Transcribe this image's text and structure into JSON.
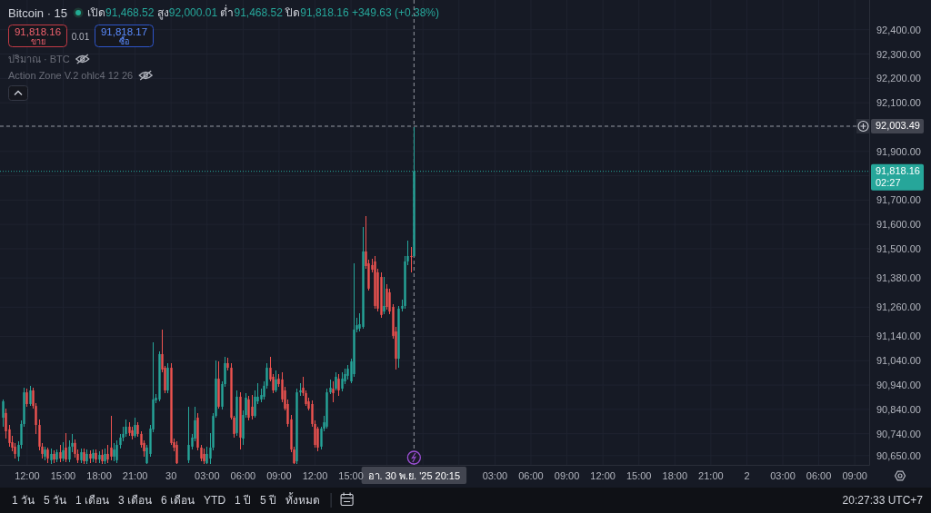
{
  "chart_data": {
    "type": "candlestick",
    "title": "Bitcoin · 15",
    "subtitle": "เปิด91,468.52 สูง92,000.01 ต่ำ91,468.52 ปิด91,818.16 +349.63 (+0.38%)",
    "x": [
      "2025-11-29T10:00",
      "2025-11-29T10:15",
      "2025-11-29T10:30",
      "2025-11-29T10:45",
      "2025-11-29T11:00",
      "2025-11-29T11:15",
      "2025-11-29T11:30",
      "2025-11-29T11:45",
      "2025-11-29T12:00",
      "2025-11-29T12:15",
      "2025-11-29T12:30",
      "2025-11-29T12:45",
      "2025-11-29T13:00",
      "2025-11-29T13:15",
      "2025-11-29T13:30",
      "2025-11-29T13:45",
      "2025-11-29T14:00",
      "2025-11-29T14:15",
      "2025-11-29T14:30",
      "2025-11-29T14:45",
      "2025-11-29T15:00",
      "2025-11-29T15:15",
      "2025-11-29T15:30",
      "2025-11-29T15:45",
      "2025-11-29T16:00",
      "2025-11-29T16:15",
      "2025-11-29T16:30",
      "2025-11-29T16:45",
      "2025-11-29T17:00",
      "2025-11-29T17:15",
      "2025-11-29T17:30",
      "2025-11-29T17:45",
      "2025-11-29T18:00",
      "2025-11-29T18:15",
      "2025-11-29T18:30",
      "2025-11-29T18:45",
      "2025-11-29T19:00",
      "2025-11-29T19:15",
      "2025-11-29T19:30",
      "2025-11-29T19:45",
      "2025-11-29T20:00",
      "2025-11-29T20:15",
      "2025-11-29T20:30",
      "2025-11-29T20:45",
      "2025-11-29T21:00",
      "2025-11-29T21:15",
      "2025-11-29T21:30",
      "2025-11-29T21:45",
      "2025-11-29T22:00",
      "2025-11-29T22:15",
      "2025-11-29T22:30",
      "2025-11-29T22:45",
      "2025-11-29T23:00",
      "2025-11-29T23:15",
      "2025-11-29T23:30",
      "2025-11-29T23:45",
      "2025-11-30T00:00",
      "2025-11-30T00:15",
      "2025-11-30T00:30",
      "2025-11-30T01:30",
      "2025-11-30T01:45",
      "2025-11-30T02:00",
      "2025-11-30T02:15",
      "2025-11-30T02:30",
      "2025-11-30T02:45",
      "2025-11-30T03:00",
      "2025-11-30T03:15",
      "2025-11-30T03:30",
      "2025-11-30T03:45",
      "2025-11-30T04:00",
      "2025-11-30T04:15",
      "2025-11-30T04:30",
      "2025-11-30T04:45",
      "2025-11-30T05:00",
      "2025-11-30T05:15",
      "2025-11-30T05:30",
      "2025-11-30T05:45",
      "2025-11-30T06:00",
      "2025-11-30T06:15",
      "2025-11-30T06:30",
      "2025-11-30T06:45",
      "2025-11-30T07:00",
      "2025-11-30T07:15",
      "2025-11-30T07:30",
      "2025-11-30T07:45",
      "2025-11-30T08:00",
      "2025-11-30T08:15",
      "2025-11-30T08:30",
      "2025-11-30T08:45",
      "2025-11-30T09:00",
      "2025-11-30T09:15",
      "2025-11-30T09:30",
      "2025-11-30T09:45",
      "2025-11-30T10:00",
      "2025-11-30T10:15",
      "2025-11-30T10:30",
      "2025-11-30T10:45",
      "2025-11-30T11:00",
      "2025-11-30T11:15",
      "2025-11-30T11:30",
      "2025-11-30T11:45",
      "2025-11-30T12:00",
      "2025-11-30T12:15",
      "2025-11-30T12:30",
      "2025-11-30T12:45",
      "2025-11-30T13:00",
      "2025-11-30T13:15",
      "2025-11-30T13:30",
      "2025-11-30T13:45",
      "2025-11-30T14:00",
      "2025-11-30T14:15",
      "2025-11-30T14:30",
      "2025-11-30T14:45",
      "2025-11-30T15:00",
      "2025-11-30T15:15",
      "2025-11-30T15:30",
      "2025-11-30T15:45",
      "2025-11-30T16:00",
      "2025-11-30T16:15",
      "2025-11-30T16:30",
      "2025-11-30T16:45",
      "2025-11-30T17:00",
      "2025-11-30T17:15",
      "2025-11-30T17:30",
      "2025-11-30T17:45",
      "2025-11-30T18:00",
      "2025-11-30T18:15",
      "2025-11-30T18:30",
      "2025-11-30T18:45",
      "2025-11-30T19:00",
      "2025-11-30T19:15",
      "2025-11-30T19:30",
      "2025-11-30T19:45",
      "2025-11-30T20:00",
      "2025-11-30T20:15"
    ],
    "ohlc": [
      [
        90806,
        90881,
        90769,
        90873
      ],
      [
        90825,
        90843,
        90720,
        90750
      ],
      [
        90758,
        90776,
        90687,
        90702
      ],
      [
        90705,
        90731,
        90668,
        90683
      ],
      [
        90687,
        90702,
        90638,
        90657
      ],
      [
        90646,
        90709,
        90627,
        90694
      ],
      [
        90694,
        90795,
        90679,
        90780
      ],
      [
        90780,
        90929,
        90769,
        90910
      ],
      [
        90910,
        90925,
        90851,
        90862
      ],
      [
        90862,
        90937,
        90854,
        90918
      ],
      [
        90918,
        90929,
        90843,
        90854
      ],
      [
        90854,
        90866,
        90739,
        90776
      ],
      [
        90776,
        90799,
        90672,
        90687
      ],
      [
        90687,
        90702,
        90638,
        90657
      ],
      [
        90646,
        90687,
        90631,
        90675
      ],
      [
        90675,
        90683,
        90619,
        90638
      ],
      [
        90631,
        90680,
        90616,
        90657
      ],
      [
        90657,
        90672,
        90619,
        90634
      ],
      [
        90634,
        90675,
        90623,
        90664
      ],
      [
        90664,
        90694,
        90623,
        90638
      ],
      [
        90638,
        90705,
        90627,
        90672
      ],
      [
        90683,
        90743,
        90623,
        90634
      ],
      [
        90634,
        90713,
        90623,
        90687
      ],
      [
        90687,
        90739,
        90664,
        90702
      ],
      [
        90702,
        90717,
        90642,
        90657
      ],
      [
        90657,
        90675,
        90619,
        90631
      ],
      [
        90631,
        90679,
        90619,
        90664
      ],
      [
        90664,
        90679,
        90616,
        90627
      ],
      [
        90627,
        90675,
        90616,
        90657
      ],
      [
        90657,
        90672,
        90619,
        90638
      ],
      [
        90638,
        90675,
        90623,
        90661
      ],
      [
        90661,
        90675,
        90619,
        90634
      ],
      [
        90634,
        90668,
        90619,
        90653
      ],
      [
        90653,
        90675,
        90616,
        90627
      ],
      [
        90627,
        90679,
        90616,
        90657
      ],
      [
        90657,
        90694,
        90619,
        90634
      ],
      [
        90683,
        90813,
        90631,
        90646
      ],
      [
        90646,
        90702,
        90627,
        90675
      ],
      [
        90631,
        90713,
        90619,
        90694
      ],
      [
        90694,
        90739,
        90679,
        90724
      ],
      [
        90724,
        90769,
        90709,
        90739
      ],
      [
        90739,
        90799,
        90728,
        90769
      ],
      [
        90769,
        90787,
        90731,
        90743
      ],
      [
        90754,
        90769,
        90717,
        90731
      ],
      [
        90731,
        90806,
        90724,
        90776
      ],
      [
        90776,
        90787,
        90728,
        90739
      ],
      [
        90739,
        90750,
        90683,
        90694
      ],
      [
        90702,
        90713,
        90646,
        90668
      ],
      [
        90619,
        90694,
        90616,
        90683
      ],
      [
        90657,
        90776,
        90646,
        90761
      ],
      [
        90758,
        91116,
        90746,
        90881
      ],
      [
        90877,
        90903,
        90866,
        90888
      ],
      [
        90881,
        91078,
        90873,
        91067
      ],
      [
        91067,
        91168,
        90993,
        91004
      ],
      [
        91011,
        91019,
        90907,
        90918
      ],
      [
        90918,
        91030,
        90907,
        91011
      ],
      [
        91011,
        91030,
        90694,
        90702
      ],
      [
        90705,
        90720,
        90668,
        90683
      ],
      [
        90694,
        90709,
        90616,
        90619
      ],
      [
        90631,
        90851,
        90619,
        90694
      ],
      [
        90687,
        90739,
        90675,
        90724
      ],
      [
        90720,
        90851,
        90709,
        90795
      ],
      [
        90806,
        90825,
        90672,
        90683
      ],
      [
        90683,
        90694,
        90627,
        90638
      ],
      [
        90657,
        90680,
        90616,
        90627
      ],
      [
        90619,
        90687,
        90616,
        90657
      ],
      [
        90638,
        90743,
        90616,
        90683
      ],
      [
        90683,
        90825,
        90672,
        90813
      ],
      [
        90813,
        91041,
        90806,
        90966
      ],
      [
        90966,
        91037,
        90843,
        90851
      ],
      [
        90851,
        90955,
        90840,
        90944
      ],
      [
        90944,
        91056,
        90933,
        91030
      ],
      [
        91030,
        91052,
        91000,
        91011
      ],
      [
        91011,
        91030,
        90799,
        90806
      ],
      [
        90806,
        90813,
        90724,
        90739
      ],
      [
        90743,
        90918,
        90731,
        90892
      ],
      [
        90892,
        90910,
        90675,
        90724
      ],
      [
        90720,
        90836,
        90694,
        90817
      ],
      [
        90817,
        90907,
        90806,
        90888
      ],
      [
        90881,
        90896,
        90795,
        90806
      ],
      [
        90851,
        90899,
        90799,
        90813
      ],
      [
        90813,
        90918,
        90806,
        90892
      ],
      [
        90873,
        90948,
        90862,
        90892
      ],
      [
        90881,
        90925,
        90869,
        90899
      ],
      [
        90892,
        90955,
        90881,
        90937
      ],
      [
        90937,
        91030,
        90925,
        91011
      ],
      [
        91011,
        91056,
        90955,
        90963
      ],
      [
        90974,
        90985,
        90907,
        90918
      ],
      [
        90918,
        91000,
        90910,
        90963
      ],
      [
        90966,
        90985,
        90933,
        90944
      ],
      [
        90963,
        90993,
        90869,
        90881
      ],
      [
        90918,
        90933,
        90836,
        90843
      ],
      [
        90862,
        90881,
        90769,
        90780
      ],
      [
        90799,
        90817,
        90664,
        90675
      ],
      [
        90675,
        90687,
        90616,
        90619
      ],
      [
        90627,
        90925,
        90616,
        90910
      ],
      [
        90910,
        90948,
        90896,
        90918
      ],
      [
        90929,
        90974,
        90896,
        90907
      ],
      [
        90907,
        90918,
        90854,
        90862
      ],
      [
        90873,
        90888,
        90836,
        90843
      ],
      [
        90862,
        90877,
        90769,
        90780
      ],
      [
        90780,
        90795,
        90683,
        90694
      ],
      [
        90761,
        90769,
        90668,
        90683
      ],
      [
        90687,
        90769,
        90675,
        90761
      ],
      [
        90761,
        90813,
        90750,
        90787
      ],
      [
        90769,
        90925,
        90761,
        90910
      ],
      [
        90910,
        90963,
        90903,
        90929
      ],
      [
        90925,
        90955,
        90869,
        90907
      ],
      [
        90925,
        90993,
        90918,
        90974
      ],
      [
        90966,
        90985,
        90896,
        90918
      ],
      [
        90925,
        90993,
        90914,
        90966
      ],
      [
        90955,
        91007,
        90944,
        90985
      ],
      [
        90978,
        91022,
        90963,
        91007
      ],
      [
        90955,
        91048,
        90948,
        91037
      ],
      [
        90985,
        91440,
        90974,
        91168
      ],
      [
        91168,
        91216,
        91157,
        91186
      ],
      [
        91172,
        91235,
        91160,
        91190
      ],
      [
        91179,
        91589,
        91172,
        91489
      ],
      [
        91489,
        91634,
        91418,
        91429
      ],
      [
        91440,
        91455,
        91328,
        91336
      ],
      [
        91433,
        91459,
        91403,
        91414
      ],
      [
        91448,
        91470,
        91254,
        91265
      ],
      [
        91403,
        91418,
        91242,
        91254
      ],
      [
        91384,
        91403,
        91216,
        91228
      ],
      [
        91242,
        91384,
        91231,
        91265
      ],
      [
        91336,
        91354,
        91250,
        91261
      ],
      [
        91321,
        91336,
        91231,
        91242
      ],
      [
        91261,
        91272,
        91131,
        91142
      ],
      [
        91160,
        91179,
        91004,
        91048
      ],
      [
        91048,
        91265,
        91011,
        91254
      ],
      [
        91254,
        91291,
        91242,
        91265
      ],
      [
        91265,
        91470,
        91254,
        91448
      ],
      [
        91448,
        91533,
        91433,
        91470
      ],
      [
        91470,
        91507,
        91403,
        91466
      ],
      [
        91468.52,
        92000.01,
        91468.52,
        91818.16
      ]
    ],
    "colors": [
      "#26a69a",
      "#ef5350",
      "#ef5350",
      "#ef5350",
      "#ef5350",
      "#26a69a",
      "#26a69a",
      "#26a69a",
      "#ef5350",
      "#26a69a",
      "#ef5350",
      "#ef5350",
      "#ef5350",
      "#ef5350",
      "#26a69a",
      "#ef5350",
      "#26a69a",
      "#ef5350",
      "#26a69a",
      "#ef5350",
      "#26a69a",
      "#ef5350",
      "#26a69a",
      "#26a69a",
      "#ef5350",
      "#ef5350",
      "#26a69a",
      "#ef5350",
      "#26a69a",
      "#ef5350",
      "#26a69a",
      "#ef5350",
      "#26a69a",
      "#ef5350",
      "#26a69a",
      "#ef5350",
      "#ef5350",
      "#26a69a",
      "#26a69a",
      "#26a69a",
      "#26a69a",
      "#26a69a",
      "#ef5350",
      "#ef5350",
      "#26a69a",
      "#ef5350",
      "#ef5350",
      "#ef5350",
      "#26a69a",
      "#26a69a",
      "#26a69a",
      "#26a69a",
      "#26a69a",
      "#ef5350",
      "#ef5350",
      "#26a69a",
      "#ef5350",
      "#ef5350",
      "#ef5350",
      "#26a69a",
      "#26a69a",
      "#26a69a",
      "#ef5350",
      "#ef5350",
      "#ef5350",
      "#26a69a",
      "#26a69a",
      "#26a69a",
      "#26a69a",
      "#ef5350",
      "#26a69a",
      "#26a69a",
      "#ef5350",
      "#ef5350",
      "#ef5350",
      "#26a69a",
      "#ef5350",
      "#26a69a",
      "#26a69a",
      "#ef5350",
      "#ef5350",
      "#26a69a",
      "#26a69a",
      "#26a69a",
      "#26a69a",
      "#26a69a",
      "#ef5350",
      "#ef5350",
      "#26a69a",
      "#ef5350",
      "#ef5350",
      "#ef5350",
      "#ef5350",
      "#ef5350",
      "#ef5350",
      "#26a69a",
      "#26a69a",
      "#ef5350",
      "#ef5350",
      "#ef5350",
      "#ef5350",
      "#ef5350",
      "#ef5350",
      "#26a69a",
      "#26a69a",
      "#26a69a",
      "#26a69a",
      "#ef5350",
      "#26a69a",
      "#ef5350",
      "#26a69a",
      "#26a69a",
      "#26a69a",
      "#26a69a",
      "#26a69a",
      "#26a69a",
      "#26a69a",
      "#26a69a",
      "#ef5350",
      "#ef5350",
      "#ef5350",
      "#ef5350",
      "#ef5350",
      "#ef5350",
      "#26a69a",
      "#ef5350",
      "#ef5350",
      "#ef5350",
      "#ef5350",
      "#26a69a",
      "#26a69a",
      "#26a69a",
      "#26a69a",
      "#ef5350",
      "#26a69a"
    ],
    "xlim": [
      "2025-11-29T09:44",
      "2025-12-02T10:12"
    ],
    "ylim": [
      90612,
      92522
    ],
    "xticks": [
      {
        "value": "2025-11-29T12:00",
        "label": "12:00"
      },
      {
        "value": "2025-11-29T15:00",
        "label": "15:00"
      },
      {
        "value": "2025-11-29T18:00",
        "label": "18:00"
      },
      {
        "value": "2025-11-29T21:00",
        "label": "21:00"
      },
      {
        "value": "2025-11-30T00:00",
        "label": "30"
      },
      {
        "value": "2025-11-30T03:00",
        "label": "03:00"
      },
      {
        "value": "2025-11-30T06:00",
        "label": "06:00"
      },
      {
        "value": "2025-11-30T09:00",
        "label": "09:00"
      },
      {
        "value": "2025-11-30T12:00",
        "label": "12:00"
      },
      {
        "value": "2025-11-30T15:00",
        "label": "15:00"
      },
      {
        "value": "2025-11-30T18:00",
        "label": null
      },
      {
        "value": "2025-11-30T21:00",
        "label": null
      },
      {
        "value": "2025-12-01T00:00",
        "label": null
      },
      {
        "value": "2025-12-01T03:00",
        "label": "03:00"
      },
      {
        "value": "2025-12-01T06:00",
        "label": "06:00"
      },
      {
        "value": "2025-12-01T09:00",
        "label": "09:00"
      },
      {
        "value": "2025-12-01T12:00",
        "label": "12:00"
      },
      {
        "value": "2025-12-01T15:00",
        "label": "15:00"
      },
      {
        "value": "2025-12-01T18:00",
        "label": "18:00"
      },
      {
        "value": "2025-12-01T21:00",
        "label": "21:00"
      },
      {
        "value": "2025-12-02T00:00",
        "label": "2"
      },
      {
        "value": "2025-12-02T03:00",
        "label": "03:00"
      },
      {
        "value": "2025-12-02T06:00",
        "label": "06:00"
      },
      {
        "value": "2025-12-02T09:00",
        "label": "09:00"
      }
    ],
    "yticks": [
      {
        "value": 92400,
        "label": "92,400.00"
      },
      {
        "value": 92300,
        "label": "92,300.00"
      },
      {
        "value": 92200,
        "label": "92,200.00"
      },
      {
        "value": 92100,
        "label": "92,100.00"
      },
      {
        "value": 92000,
        "label": null
      },
      {
        "value": 91900,
        "label": "91,900.00"
      },
      {
        "value": 91800,
        "label": null
      },
      {
        "value": 91700,
        "label": "91,700.00"
      },
      {
        "value": 91600,
        "label": "91,600.00"
      },
      {
        "value": 91500,
        "label": "91,500.00"
      },
      {
        "value": 91380,
        "label": "91,380.00"
      },
      {
        "value": 91260,
        "label": "91,260.00"
      },
      {
        "value": 91140,
        "label": "91,140.00"
      },
      {
        "value": 91040,
        "label": "91,040.00"
      },
      {
        "value": 90940,
        "label": "90,940.00"
      },
      {
        "value": 90840,
        "label": "90,840.00"
      },
      {
        "value": 90740,
        "label": "90,740.00"
      },
      {
        "value": 90650,
        "label": "90,650.00"
      }
    ],
    "grid": true,
    "ref_lines": [
      {
        "axis": "y",
        "value": 92003.49,
        "label": "92,003.49",
        "line_style": "dashed",
        "color": "#9598a1"
      },
      {
        "axis": "y",
        "value": 91818.16,
        "label": "91,818.16\n02:27",
        "line_style": "dotted",
        "color": "#26a69a"
      },
      {
        "axis": "x",
        "value": "2025-11-30T20:15",
        "label": "อา. 30 พ.ย. '25  20:15",
        "line_style": "dashed",
        "color": "#9598a1"
      }
    ],
    "annotations": [
      "91,818.16",
      "ขาย",
      "0.01",
      "91,818.17",
      "ซื้อ",
      "ปริมาณ · BTC",
      "Action Zone V.2 ohlc4 12 26",
      "1 วัน",
      "5 วัน",
      "1 เดือน",
      "3 เดือน",
      "6 เดือน",
      "YTD",
      "1 ปี",
      "5 ปี",
      "ทั้งหมด",
      "20:27:33 UTC+7"
    ]
  }
}
